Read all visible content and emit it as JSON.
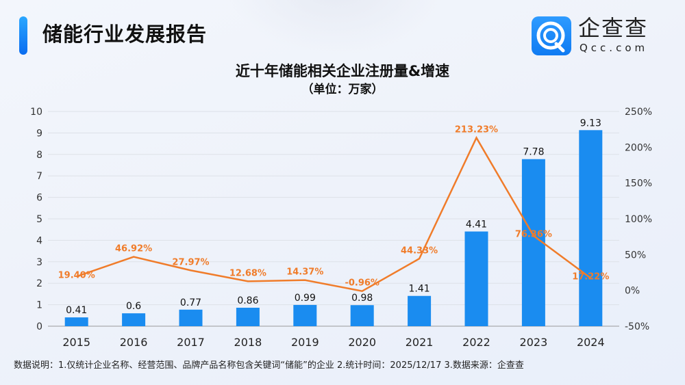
{
  "header": {
    "title": "储能行业发展报告",
    "logo_cn": "企查查",
    "logo_en": "Qcc.com",
    "accent": "#1a8cf5"
  },
  "chart_data": {
    "type": "bar+line",
    "title": "近十年储能相关企业注册量&增速",
    "subtitle": "（单位：万家）",
    "categories": [
      "2015",
      "2016",
      "2017",
      "2018",
      "2019",
      "2020",
      "2021",
      "2022",
      "2023",
      "2024"
    ],
    "series": [
      {
        "type": "bar",
        "axis": "left",
        "color": "#1a8cf0",
        "values": [
          0.41,
          0.6,
          0.77,
          0.86,
          0.99,
          0.98,
          1.41,
          4.41,
          7.78,
          9.13
        ],
        "labels": [
          "0.41",
          "0.6",
          "0.77",
          "0.86",
          "0.99",
          "0.98",
          "1.41",
          "4.41",
          "7.78",
          "9.13"
        ]
      },
      {
        "type": "line",
        "axis": "right",
        "color": "#f07c2a",
        "values": [
          19.4,
          46.92,
          27.97,
          12.68,
          14.37,
          -0.96,
          44.33,
          213.23,
          76.36,
          17.22
        ],
        "labels": [
          "19.40%",
          "46.92%",
          "27.97%",
          "12.68%",
          "14.37%",
          "-0.96%",
          "44.33%",
          "213.23%",
          "76.36%",
          "17.22%"
        ]
      }
    ],
    "ylim_left": [
      0,
      10
    ],
    "yticks_left": [
      "0",
      "1",
      "2",
      "3",
      "4",
      "5",
      "6",
      "7",
      "8",
      "9",
      "10"
    ],
    "ylim_right": [
      -50,
      250
    ],
    "yticks_right": [
      "-50%",
      "0%",
      "50%",
      "100%",
      "150%",
      "200%",
      "250%"
    ],
    "grid": true,
    "legend": "none"
  },
  "footnote": "数据说明：1.仅统计企业名称、经营范围、品牌产品名称包含关键词“储能”的企业   2.统计时间：2025/12/17    3.数据来源：企查查"
}
